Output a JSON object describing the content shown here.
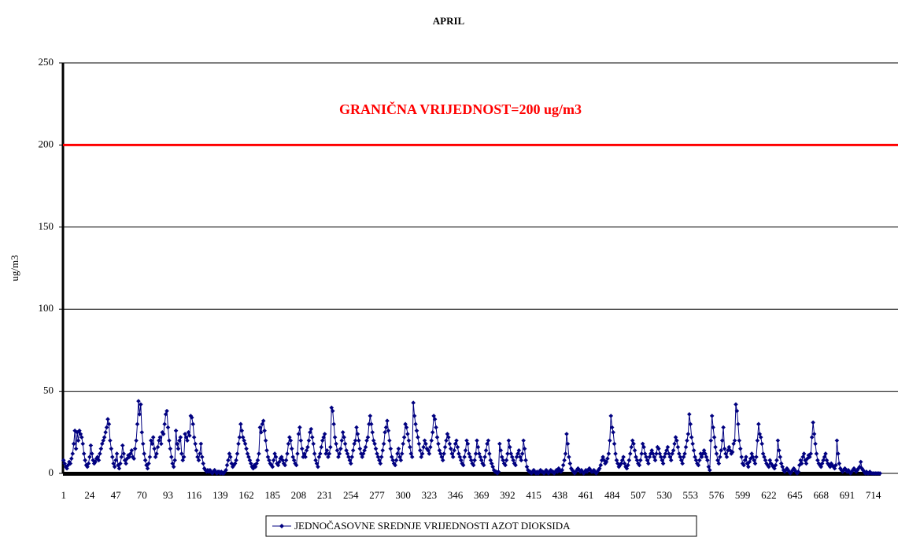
{
  "chart_data": {
    "type": "line",
    "title": "APRIL",
    "y_label": "ug/m3",
    "annotation": "GRANIČNA VRIJEDNOST=200 ug/m3",
    "limit_line": {
      "value": 200,
      "color": "#ff0000"
    },
    "ylim": [
      0,
      250
    ],
    "yticks": [
      0,
      50,
      100,
      150,
      200,
      250
    ],
    "grid": true,
    "legend": "bottom",
    "categories": [
      1,
      null,
      null,
      null,
      null,
      null,
      null,
      null,
      null,
      null,
      null,
      null,
      null,
      null,
      null,
      null,
      null,
      null,
      null,
      null,
      null,
      null,
      null,
      24,
      null,
      null,
      null,
      null,
      null,
      null,
      null,
      null,
      null,
      null,
      null,
      null,
      null,
      null,
      null,
      null,
      null,
      null,
      null,
      null,
      null,
      null,
      47,
      null,
      null,
      null,
      null,
      null,
      null,
      null,
      null,
      null,
      null,
      null,
      null,
      null,
      null,
      null,
      null,
      null,
      null,
      null,
      null,
      null,
      null,
      70,
      null,
      null,
      null,
      null,
      null,
      null,
      null,
      null,
      null,
      null,
      null,
      null,
      null,
      null,
      null,
      null,
      null,
      null,
      null,
      null,
      null,
      null,
      93,
      null,
      null,
      null,
      null,
      null,
      null,
      null,
      null,
      null,
      null,
      null,
      null,
      null,
      null,
      null,
      null,
      null,
      null,
      null,
      null,
      null,
      null,
      116,
      null,
      null,
      null,
      null,
      null,
      null,
      null,
      null,
      null,
      null,
      null,
      null,
      null,
      null,
      null,
      null,
      null,
      null,
      null,
      null,
      null,
      null,
      139,
      null,
      null,
      null,
      null,
      null,
      null,
      null,
      null,
      null,
      null,
      null,
      null,
      null,
      null,
      null,
      null,
      null,
      null,
      null,
      null,
      null,
      null,
      162,
      null,
      null,
      null,
      null,
      null,
      null,
      null,
      null,
      null,
      null,
      null,
      null,
      null,
      null,
      null,
      null,
      null,
      null,
      null,
      null,
      null,
      null,
      185,
      null,
      null,
      null,
      null,
      null,
      null,
      null,
      null,
      null,
      null,
      null,
      null,
      null,
      null,
      null,
      null,
      null,
      null,
      null,
      null,
      null,
      null,
      208,
      null,
      null,
      null,
      null,
      null,
      null,
      null,
      null,
      null,
      null,
      null,
      null,
      null,
      null,
      null,
      null,
      null,
      null,
      null,
      null,
      null,
      null,
      231,
      null,
      null,
      null,
      null,
      null,
      null,
      null,
      null,
      null,
      null,
      null,
      null,
      null,
      null,
      null,
      null,
      null,
      null,
      null,
      null,
      null,
      null,
      254,
      null,
      null,
      null,
      null,
      null,
      null,
      null,
      null,
      null,
      null,
      null,
      null,
      null,
      null,
      null,
      null,
      null,
      null,
      null,
      null,
      null,
      null,
      277,
      null,
      null,
      null,
      null,
      null,
      null,
      null,
      null,
      null,
      null,
      null,
      null,
      null,
      null,
      null,
      null,
      null,
      null,
      null,
      null,
      null,
      null,
      300,
      null,
      null,
      null,
      null,
      null,
      null,
      null,
      null,
      null,
      null,
      null,
      null,
      null,
      null,
      null,
      null,
      null,
      null,
      null,
      null,
      null,
      null,
      323,
      null,
      null,
      null,
      null,
      null,
      null,
      null,
      null,
      null,
      null,
      null,
      null,
      null,
      null,
      null,
      null,
      null,
      null,
      null,
      null,
      null,
      null,
      346,
      null,
      null,
      null,
      null,
      null,
      null,
      null,
      null,
      null,
      null,
      null,
      null,
      null,
      null,
      null,
      null,
      null,
      null,
      null,
      null,
      null,
      null,
      369,
      null,
      null,
      null,
      null,
      null,
      null,
      null,
      null,
      null,
      null,
      null,
      null,
      null,
      null,
      null,
      null,
      null,
      null,
      null,
      null,
      null,
      null,
      392,
      null,
      null,
      null,
      null,
      null,
      null,
      null,
      null,
      null,
      null,
      null,
      null,
      null,
      null,
      null,
      null,
      null,
      null,
      null,
      null,
      null,
      null,
      415,
      null,
      null,
      null,
      null,
      null,
      null,
      null,
      null,
      null,
      null,
      null,
      null,
      null,
      null,
      null,
      null,
      null,
      null,
      null,
      null,
      null,
      null,
      438,
      null,
      null,
      null,
      null,
      null,
      null,
      null,
      null,
      null,
      null,
      null,
      null,
      null,
      null,
      null,
      null,
      null,
      null,
      null,
      null,
      null,
      null,
      461,
      null,
      null,
      null,
      null,
      null,
      null,
      null,
      null,
      null,
      null,
      null,
      null,
      null,
      null,
      null,
      null,
      null,
      null,
      null,
      null,
      null,
      null,
      484,
      null,
      null,
      null,
      null,
      null,
      null,
      null,
      null,
      null,
      null,
      null,
      null,
      null,
      null,
      null,
      null,
      null,
      null,
      null,
      null,
      null,
      null,
      507,
      null,
      null,
      null,
      null,
      null,
      null,
      null,
      null,
      null,
      null,
      null,
      null,
      null,
      null,
      null,
      null,
      null,
      null,
      null,
      null,
      null,
      null,
      530,
      null,
      null,
      null,
      null,
      null,
      null,
      null,
      null,
      null,
      null,
      null,
      null,
      null,
      null,
      null,
      null,
      null,
      null,
      null,
      null,
      null,
      null,
      553,
      null,
      null,
      null,
      null,
      null,
      null,
      null,
      null,
      null,
      null,
      null,
      null,
      null,
      null,
      null,
      null,
      null,
      null,
      null,
      null,
      null,
      null,
      576,
      null,
      null,
      null,
      null,
      null,
      null,
      null,
      null,
      null,
      null,
      null,
      null,
      null,
      null,
      null,
      null,
      null,
      null,
      null,
      null,
      null,
      null,
      599,
      null,
      null,
      null,
      null,
      null,
      null,
      null,
      null,
      null,
      null,
      null,
      null,
      null,
      null,
      null,
      null,
      null,
      null,
      null,
      null,
      null,
      null,
      622,
      null,
      null,
      null,
      null,
      null,
      null,
      null,
      null,
      null,
      null,
      null,
      null,
      null,
      null,
      null,
      null,
      null,
      null,
      null,
      null,
      null,
      null,
      645,
      null,
      null,
      null,
      null,
      null,
      null,
      null,
      null,
      null,
      null,
      null,
      null,
      null,
      null,
      null,
      null,
      null,
      null,
      null,
      null,
      null,
      null,
      668,
      null,
      null,
      null,
      null,
      null,
      null,
      null,
      null,
      null,
      null,
      null,
      null,
      null,
      null,
      null,
      null,
      null,
      null,
      null,
      null,
      null,
      null,
      691,
      null,
      null,
      null,
      null,
      null,
      null,
      null,
      null,
      null,
      null,
      null,
      null,
      null,
      null,
      null,
      null,
      null,
      null,
      null,
      null,
      null,
      null,
      714,
      null,
      null,
      null,
      null,
      null,
      null
    ],
    "series": [
      {
        "name": "JEDNOČASOVNE SREDNJE VRIJEDNOSTI AZOT DIOKSIDA",
        "color": "#000080",
        "values": [
          8,
          6,
          4,
          3,
          5,
          7,
          6,
          9,
          12,
          18,
          26,
          15,
          25,
          20,
          26,
          24,
          22,
          18,
          12,
          8,
          5,
          4,
          6,
          10,
          17,
          12,
          8,
          6,
          7,
          9,
          10,
          8,
          12,
          15,
          18,
          20,
          22,
          25,
          28,
          33,
          30,
          20,
          15,
          10,
          6,
          4,
          8,
          12,
          5,
          3,
          6,
          10,
          17,
          12,
          8,
          6,
          9,
          11,
          10,
          12,
          14,
          10,
          9,
          15,
          20,
          30,
          44,
          36,
          42,
          25,
          18,
          12,
          8,
          5,
          3,
          6,
          10,
          20,
          18,
          22,
          15,
          10,
          12,
          16,
          20,
          22,
          18,
          25,
          24,
          30,
          36,
          38,
          28,
          20,
          15,
          10,
          6,
          4,
          8,
          26,
          18,
          15,
          20,
          22,
          12,
          8,
          10,
          24,
          22,
          20,
          25,
          23,
          35,
          34,
          30,
          22,
          18,
          14,
          10,
          8,
          12,
          18,
          10,
          6,
          3,
          2,
          1,
          2,
          1,
          2,
          1,
          0,
          1,
          2,
          1,
          0,
          1,
          1,
          0,
          1,
          0,
          0,
          1,
          2,
          5,
          8,
          12,
          10,
          6,
          4,
          5,
          6,
          8,
          12,
          18,
          22,
          30,
          26,
          22,
          20,
          18,
          15,
          12,
          10,
          8,
          6,
          4,
          3,
          5,
          4,
          6,
          8,
          12,
          28,
          25,
          30,
          32,
          26,
          20,
          14,
          10,
          8,
          6,
          5,
          4,
          8,
          12,
          10,
          6,
          5,
          7,
          9,
          10,
          8,
          6,
          5,
          8,
          12,
          18,
          22,
          20,
          15,
          10,
          8,
          6,
          5,
          12,
          24,
          28,
          20,
          15,
          10,
          12,
          10,
          14,
          16,
          20,
          25,
          27,
          22,
          18,
          12,
          8,
          6,
          4,
          10,
          12,
          16,
          20,
          22,
          24,
          12,
          14,
          10,
          12,
          16,
          40,
          38,
          30,
          22,
          18,
          14,
          10,
          12,
          15,
          20,
          25,
          22,
          18,
          14,
          12,
          10,
          8,
          6,
          10,
          14,
          18,
          20,
          28,
          24,
          20,
          15,
          12,
          10,
          12,
          14,
          16,
          20,
          22,
          30,
          35,
          30,
          25,
          20,
          18,
          15,
          12,
          10,
          8,
          6,
          10,
          14,
          18,
          25,
          28,
          32,
          26,
          20,
          15,
          10,
          8,
          6,
          5,
          8,
          12,
          15,
          10,
          8,
          12,
          18,
          22,
          30,
          28,
          24,
          20,
          16,
          12,
          10,
          43,
          35,
          30,
          26,
          22,
          18,
          14,
          10,
          12,
          16,
          20,
          18,
          15,
          14,
          12,
          16,
          20,
          25,
          35,
          33,
          28,
          22,
          18,
          14,
          12,
          10,
          8,
          12,
          16,
          20,
          24,
          22,
          18,
          15,
          12,
          10,
          14,
          18,
          20,
          16,
          12,
          10,
          8,
          6,
          5,
          10,
          14,
          20,
          18,
          12,
          10,
          8,
          6,
          5,
          8,
          12,
          20,
          16,
          12,
          10,
          8,
          6,
          5,
          10,
          14,
          18,
          20,
          12,
          8,
          6,
          4,
          2,
          1,
          1,
          0,
          1,
          18,
          14,
          10,
          8,
          6,
          5,
          8,
          12,
          20,
          16,
          12,
          10,
          8,
          6,
          5,
          10,
          12,
          14,
          10,
          8,
          12,
          20,
          15,
          8,
          4,
          2,
          1,
          1,
          0,
          1,
          2,
          1,
          0,
          1,
          0,
          1,
          2,
          1,
          1,
          0,
          1,
          2,
          1,
          0,
          1,
          2,
          1,
          1,
          0,
          1,
          2,
          1,
          3,
          2,
          1,
          2,
          5,
          8,
          12,
          24,
          18,
          10,
          6,
          3,
          2,
          1,
          0,
          1,
          2,
          3,
          2,
          1,
          2,
          1,
          0,
          1,
          2,
          1,
          2,
          3,
          2,
          1,
          1,
          2,
          1,
          0,
          1,
          2,
          3,
          5,
          8,
          10,
          8,
          6,
          7,
          9,
          12,
          20,
          35,
          28,
          25,
          18,
          12,
          8,
          6,
          4,
          5,
          6,
          8,
          10,
          6,
          4,
          3,
          5,
          8,
          12,
          16,
          20,
          18,
          14,
          10,
          8,
          6,
          5,
          8,
          12,
          18,
          16,
          12,
          10,
          8,
          6,
          10,
          12,
          14,
          12,
          10,
          8,
          12,
          16,
          15,
          12,
          10,
          8,
          6,
          10,
          12,
          14,
          16,
          12,
          10,
          8,
          12,
          14,
          18,
          22,
          20,
          16,
          12,
          10,
          8,
          6,
          10,
          12,
          16,
          20,
          24,
          36,
          30,
          22,
          18,
          14,
          10,
          8,
          6,
          5,
          8,
          12,
          10,
          12,
          14,
          12,
          10,
          8,
          4,
          2,
          20,
          35,
          28,
          22,
          16,
          12,
          8,
          6,
          10,
          14,
          20,
          28,
          15,
          12,
          10,
          14,
          16,
          14,
          12,
          13,
          18,
          20,
          42,
          38,
          30,
          20,
          15,
          10,
          6,
          5,
          8,
          10,
          6,
          4,
          7,
          9,
          12,
          10,
          8,
          6,
          10,
          20,
          30,
          24,
          22,
          18,
          12,
          10,
          8,
          6,
          5,
          4,
          8,
          6,
          5,
          4,
          3,
          5,
          8,
          20,
          14,
          10,
          6,
          4,
          2,
          1,
          2,
          3,
          2,
          1,
          0,
          1,
          2,
          3,
          2,
          1,
          0,
          1,
          5,
          8,
          6,
          10,
          12,
          8,
          6,
          9,
          11,
          10,
          12,
          22,
          31,
          24,
          18,
          12,
          8,
          6,
          5,
          4,
          6,
          8,
          10,
          12,
          8,
          6,
          5,
          4,
          6,
          5,
          4,
          3,
          5,
          20,
          12,
          6,
          3,
          2,
          1,
          2,
          3,
          2,
          1,
          2,
          1,
          0,
          1,
          2,
          3,
          2,
          1,
          2,
          3,
          4,
          7,
          3,
          2,
          1,
          0,
          1,
          0,
          0,
          1,
          0,
          0,
          0,
          0,
          0,
          0,
          0,
          0,
          0
        ]
      }
    ]
  }
}
